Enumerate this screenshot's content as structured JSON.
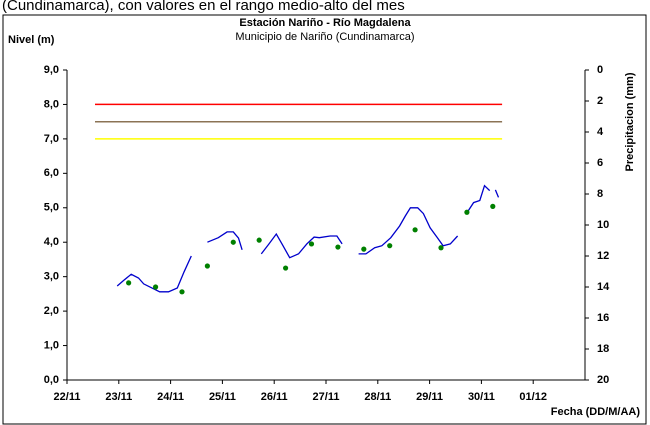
{
  "header_text": "(Cundinamarca), con valores en el rango medio-alto del mes",
  "chart_data": {
    "type": "line",
    "title": "Estación Nariño - Río Magdalena",
    "subtitle": "Municipio de Nariño (Cundinamarca)",
    "y_label": "Nivel (m)",
    "y2_label": "Precipitacion (mm)",
    "x_label": "Fecha (DD/M/AA)",
    "xlim": [
      0,
      10
    ],
    "xticks": [
      {
        "value": 0,
        "label": "22/11"
      },
      {
        "value": 1,
        "label": "23/11"
      },
      {
        "value": 2,
        "label": "24/11"
      },
      {
        "value": 3,
        "label": "25/11"
      },
      {
        "value": 4,
        "label": "26/11"
      },
      {
        "value": 5,
        "label": "27/11"
      },
      {
        "value": 6,
        "label": "28/11"
      },
      {
        "value": 7,
        "label": "29/11"
      },
      {
        "value": 8,
        "label": "30/11"
      },
      {
        "value": 9,
        "label": "01/12"
      }
    ],
    "ylim": [
      0,
      9
    ],
    "yticks": [
      {
        "value": 0,
        "label": "0,0"
      },
      {
        "value": 1,
        "label": "1,0"
      },
      {
        "value": 2,
        "label": "2,0"
      },
      {
        "value": 3,
        "label": "3,0"
      },
      {
        "value": 4,
        "label": "4,0"
      },
      {
        "value": 5,
        "label": "5,0"
      },
      {
        "value": 6,
        "label": "6,0"
      },
      {
        "value": 7,
        "label": "7,0"
      },
      {
        "value": 8,
        "label": "8,0"
      },
      {
        "value": 9,
        "label": "9,0"
      }
    ],
    "y2lim": [
      20,
      0
    ],
    "y2ticks": [
      0,
      2,
      4,
      6,
      8,
      10,
      12,
      14,
      16,
      18,
      20
    ],
    "series": [
      {
        "style": "line",
        "color": "#ff0000",
        "x": [
          0.54,
          8.4
        ],
        "values": [
          8,
          8
        ]
      },
      {
        "style": "line",
        "color": "#8b7355",
        "x": [
          0.54,
          8.4
        ],
        "values": [
          7.5,
          7.5
        ]
      },
      {
        "style": "line",
        "color": "#ffff00",
        "x": [
          0.54,
          8.4
        ],
        "values": [
          7,
          7
        ]
      },
      {
        "style": "line",
        "color": "#0000cc",
        "x": [
          0.97,
          1.1,
          1.24,
          1.38,
          1.48,
          1.79,
          1.96,
          2.13,
          2.26,
          2.4,
          2.55,
          2.71,
          2.92,
          3.09,
          3.21,
          3.31,
          3.38,
          3.56,
          3.75,
          3.9,
          4.04,
          4.15,
          4.3,
          4.47,
          4.63,
          4.77,
          4.87,
          5.08,
          5.21,
          5.31,
          5.47,
          5.63,
          5.77,
          5.94,
          6.08,
          6.25,
          6.42,
          6.53,
          6.63,
          6.77,
          6.88,
          7.01,
          7.15,
          7.26,
          7.4,
          7.54,
          7.62,
          7.71,
          7.85,
          7.97,
          8.06,
          8.16,
          8.22,
          8.27,
          8.33
        ],
        "values": [
          2.73,
          2.9,
          3.07,
          2.96,
          2.79,
          2.56,
          2.56,
          2.67,
          3.14,
          3.6,
          null,
          4.0,
          4.13,
          4.3,
          4.3,
          4.12,
          3.78,
          null,
          3.66,
          3.95,
          4.24,
          3.95,
          3.55,
          3.66,
          3.95,
          4.15,
          4.13,
          4.18,
          4.18,
          3.95,
          null,
          3.66,
          3.66,
          3.84,
          3.9,
          4.13,
          4.47,
          4.76,
          5.0,
          5.0,
          4.83,
          4.42,
          4.13,
          3.9,
          3.95,
          4.18,
          null,
          4.83,
          5.15,
          5.21,
          5.64,
          5.5,
          null,
          5.52,
          5.3
        ]
      },
      {
        "style": "dots",
        "color": "#008000",
        "x": [
          1.19,
          1.71,
          2.22,
          2.71,
          3.21,
          3.71,
          4.22,
          4.72,
          5.23,
          5.73,
          6.23,
          6.72,
          7.22,
          7.72,
          8.22
        ],
        "values": [
          2.82,
          2.7,
          2.56,
          3.31,
          4.0,
          4.06,
          3.25,
          3.95,
          3.86,
          3.8,
          3.9,
          4.36,
          3.84,
          4.87,
          5.04
        ]
      }
    ]
  }
}
